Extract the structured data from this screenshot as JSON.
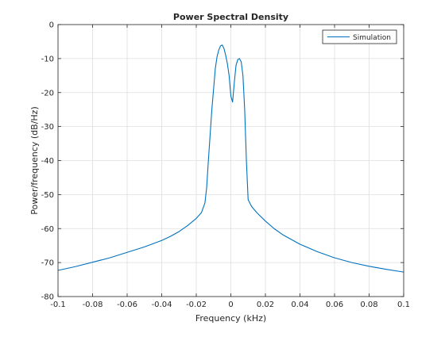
{
  "chart_data": {
    "type": "line",
    "title": "Power Spectral Density",
    "xlabel": "Frequency (kHz)",
    "ylabel": "Power/frequency (dB/Hz)",
    "xlim": [
      -0.1,
      0.1
    ],
    "ylim": [
      -80,
      0
    ],
    "x_ticks": [
      "-0.1",
      "-0.08",
      "-0.06",
      "-0.04",
      "-0.02",
      "0",
      "0.02",
      "0.04",
      "0.06",
      "0.08",
      "0.1"
    ],
    "x_tick_values": [
      -0.1,
      -0.08,
      -0.06,
      -0.04,
      -0.02,
      0,
      0.02,
      0.04,
      0.06,
      0.08,
      0.1
    ],
    "y_ticks": [
      "0",
      "-10",
      "-20",
      "-30",
      "-40",
      "-50",
      "-60",
      "-70",
      "-80"
    ],
    "y_tick_values": [
      0,
      -10,
      -20,
      -30,
      -40,
      -50,
      -60,
      -70,
      -80
    ],
    "grid": true,
    "legend_position": "top-right",
    "series": [
      {
        "name": "Simulation",
        "color": "#0072bd",
        "x": [
          -0.1,
          -0.09,
          -0.08,
          -0.07,
          -0.06,
          -0.05,
          -0.04,
          -0.035,
          -0.03,
          -0.025,
          -0.02,
          -0.017,
          -0.015,
          -0.014,
          -0.013,
          -0.011,
          -0.009,
          -0.008,
          -0.007,
          -0.006,
          -0.005,
          -0.004,
          -0.003,
          -0.002,
          -0.001,
          0.0,
          0.001,
          0.002,
          0.003,
          0.004,
          0.005,
          0.006,
          0.007,
          0.008,
          0.009,
          0.01,
          0.012,
          0.015,
          0.02,
          0.025,
          0.03,
          0.04,
          0.05,
          0.06,
          0.07,
          0.08,
          0.09,
          0.1
        ],
        "values": [
          -72.3,
          -71.2,
          -69.9,
          -68.6,
          -67.0,
          -65.4,
          -63.5,
          -62.3,
          -60.9,
          -59.1,
          -57.0,
          -55.3,
          -52.5,
          -48.0,
          -40.0,
          -25.0,
          -13.0,
          -9.5,
          -7.5,
          -6.3,
          -6.0,
          -7.0,
          -9.0,
          -11.5,
          -15.0,
          -21.0,
          -22.8,
          -17.0,
          -12.0,
          -10.3,
          -10.0,
          -11.0,
          -15.0,
          -25.0,
          -40.0,
          -51.5,
          -53.5,
          -55.3,
          -57.8,
          -60.0,
          -61.8,
          -64.6,
          -66.8,
          -68.6,
          -70.0,
          -71.1,
          -72.0,
          -72.8
        ]
      }
    ]
  }
}
